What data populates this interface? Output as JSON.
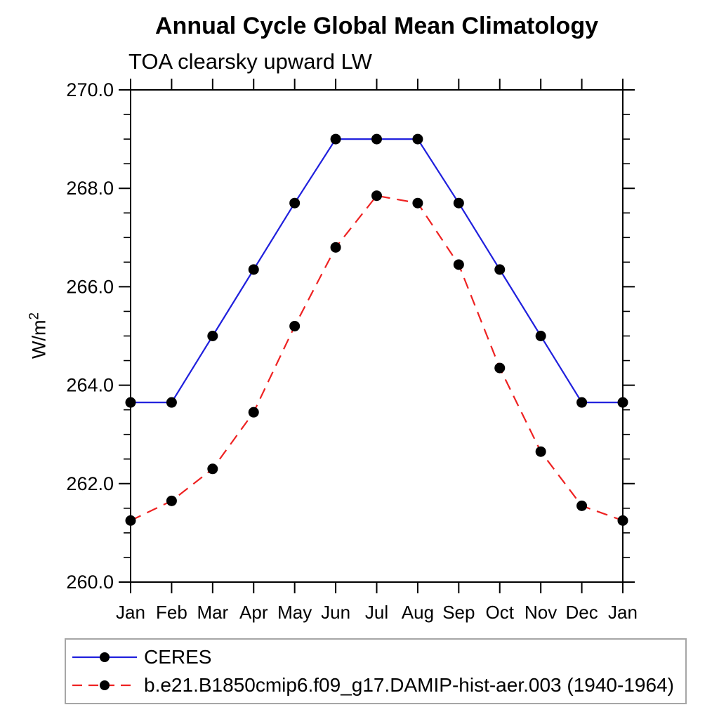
{
  "figure": {
    "title": "Annual Cycle Global Mean Climatology",
    "subtitle": "TOA clearsky upward LW",
    "ylabel_base": "W/m",
    "ylabel_sup": "2"
  },
  "chart_data": {
    "type": "line",
    "title": "Annual Cycle Global Mean Climatology",
    "subtitle": "TOA clearsky upward LW",
    "ylabel": "W/m²",
    "xlabel": "",
    "categories": [
      "Jan",
      "Feb",
      "Mar",
      "Apr",
      "May",
      "Jun",
      "Jul",
      "Aug",
      "Sep",
      "Oct",
      "Nov",
      "Dec",
      "Jan"
    ],
    "ylim": [
      260.0,
      270.0
    ],
    "ytick_major_step": 2.0,
    "ytick_minor_step": 0.5,
    "ytick_labels": [
      "260.0",
      "262.0",
      "264.0",
      "266.0",
      "268.0",
      "270.0"
    ],
    "grid": false,
    "legend_position": "bottom-left-box",
    "axis_color": "#000000",
    "marker_color": "#000000",
    "series": [
      {
        "name": "CERES",
        "color": "#2020dd",
        "style": "solid",
        "marker": "circle",
        "values": [
          263.65,
          263.65,
          265.0,
          266.35,
          267.7,
          269.0,
          269.0,
          269.0,
          267.7,
          266.35,
          265.0,
          263.65,
          263.65
        ]
      },
      {
        "name": "b.e21.B1850cmip6.f09_g17.DAMIP-hist-aer.003 (1940-1964)",
        "color": "#ee2222",
        "style": "dashed",
        "marker": "circle",
        "values": [
          261.25,
          261.65,
          262.3,
          263.45,
          265.2,
          266.8,
          267.85,
          267.7,
          266.45,
          264.35,
          262.65,
          261.55,
          261.25
        ]
      }
    ]
  }
}
